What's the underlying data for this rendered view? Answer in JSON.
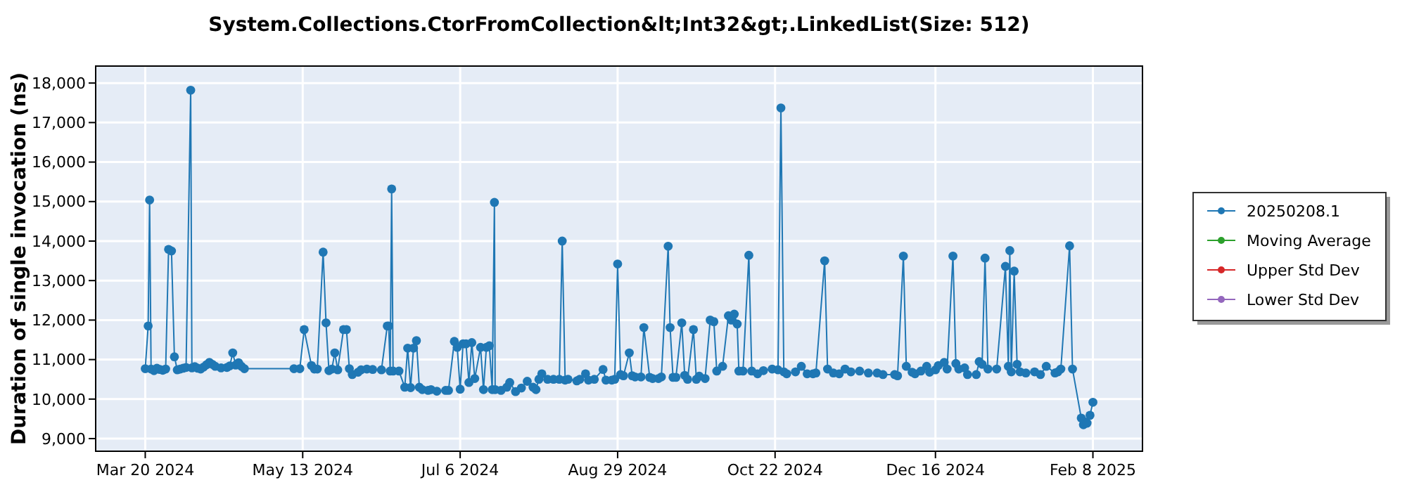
{
  "chart_data": {
    "type": "line",
    "title": "System.Collections.CtorFromCollection&lt;Int32&gt;.LinkedList(Size: 512)",
    "ylabel": "Duration of single invocation (ns)",
    "xlim": [
      "2024-03-03",
      "2025-02-25"
    ],
    "xticks": [
      {
        "value": "2024-03-20",
        "label": "Mar 20 2024"
      },
      {
        "value": "2024-05-13",
        "label": "May 13 2024"
      },
      {
        "value": "2024-07-06",
        "label": "Jul 6 2024"
      },
      {
        "value": "2024-08-29",
        "label": "Aug 29 2024"
      },
      {
        "value": "2024-10-22",
        "label": "Oct 22 2024"
      },
      {
        "value": "2024-12-16",
        "label": "Dec 16 2024"
      },
      {
        "value": "2025-02-08",
        "label": "Feb 8 2025"
      }
    ],
    "ylim": [
      8680,
      18430
    ],
    "yticks": [
      {
        "value": 9000,
        "label": "9,000"
      },
      {
        "value": 10000,
        "label": "10,000"
      },
      {
        "value": 11000,
        "label": "11,000"
      },
      {
        "value": 12000,
        "label": "12,000"
      },
      {
        "value": 13000,
        "label": "13,000"
      },
      {
        "value": 14000,
        "label": "14,000"
      },
      {
        "value": 15000,
        "label": "15,000"
      },
      {
        "value": 16000,
        "label": "16,000"
      },
      {
        "value": 17000,
        "label": "17,000"
      },
      {
        "value": 18000,
        "label": "18,000"
      }
    ],
    "grid": true,
    "legend": "right",
    "marker": "circle",
    "line_style": "solid",
    "series": [
      {
        "name": "20250208.1",
        "color": "#1f77b4",
        "x": [
          "2024-03-20",
          "2024-03-21",
          "2024-03-21T12:00",
          "2024-03-22",
          "2024-03-23",
          "2024-03-24",
          "2024-03-25",
          "2024-03-26",
          "2024-03-27",
          "2024-03-28",
          "2024-03-29",
          "2024-03-30",
          "2024-03-31",
          "2024-04-01",
          "2024-04-02",
          "2024-04-03",
          "2024-04-04T14:00",
          "2024-04-05",
          "2024-04-06",
          "2024-04-07",
          "2024-04-08",
          "2024-04-09",
          "2024-04-10",
          "2024-04-11",
          "2024-04-12",
          "2024-04-13",
          "2024-04-15",
          "2024-04-17",
          "2024-04-18",
          "2024-04-19",
          "2024-04-20",
          "2024-04-21",
          "2024-04-22",
          "2024-04-23",
          "2024-05-10",
          "2024-05-12",
          "2024-05-13T12:00",
          "2024-05-16",
          "2024-05-17",
          "2024-05-18",
          "2024-05-20",
          "2024-05-21",
          "2024-05-22",
          "2024-05-23",
          "2024-05-24",
          "2024-05-25",
          "2024-05-27",
          "2024-05-28",
          "2024-05-29",
          "2024-05-30",
          "2024-06-01",
          "2024-06-02",
          "2024-06-04",
          "2024-06-06",
          "2024-06-09",
          "2024-06-11",
          "2024-06-11T12:00",
          "2024-06-12",
          "2024-06-12T12:00",
          "2024-06-13",
          "2024-06-15",
          "2024-06-17",
          "2024-06-18",
          "2024-06-19",
          "2024-06-20",
          "2024-06-21",
          "2024-06-22",
          "2024-06-23",
          "2024-06-25",
          "2024-06-26",
          "2024-06-28",
          "2024-07-01",
          "2024-07-02",
          "2024-07-04",
          "2024-07-05",
          "2024-07-06",
          "2024-07-07",
          "2024-07-08",
          "2024-07-09",
          "2024-07-10",
          "2024-07-11",
          "2024-07-13",
          "2024-07-14",
          "2024-07-15",
          "2024-07-16",
          "2024-07-17",
          "2024-07-17T18:00",
          "2024-07-18",
          "2024-07-20",
          "2024-07-22",
          "2024-07-23",
          "2024-07-25",
          "2024-07-27",
          "2024-07-29",
          "2024-07-31",
          "2024-08-01",
          "2024-08-02",
          "2024-08-03",
          "2024-08-05",
          "2024-08-07",
          "2024-08-09",
          "2024-08-10",
          "2024-08-11",
          "2024-08-12",
          "2024-08-15",
          "2024-08-16",
          "2024-08-18",
          "2024-08-19",
          "2024-08-21",
          "2024-08-24",
          "2024-08-25",
          "2024-08-27",
          "2024-08-28",
          "2024-08-29",
          "2024-08-30",
          "2024-08-31",
          "2024-09-02",
          "2024-09-03",
          "2024-09-04",
          "2024-09-06",
          "2024-09-07",
          "2024-09-09",
          "2024-09-10",
          "2024-09-12",
          "2024-09-13",
          "2024-09-15T08:00",
          "2024-09-16",
          "2024-09-17",
          "2024-09-18",
          "2024-09-20",
          "2024-09-21",
          "2024-09-22",
          "2024-09-24",
          "2024-09-25",
          "2024-09-26",
          "2024-09-28",
          "2024-09-29T18:00",
          "2024-10-01",
          "2024-10-02",
          "2024-10-04",
          "2024-10-06",
          "2024-10-07",
          "2024-10-08",
          "2024-10-09",
          "2024-10-09T14:00",
          "2024-10-11",
          "2024-10-13",
          "2024-10-14",
          "2024-10-16",
          "2024-10-18",
          "2024-10-21",
          "2024-10-23",
          "2024-10-24",
          "2024-10-25",
          "2024-10-26",
          "2024-10-29",
          "2024-10-31",
          "2024-11-02",
          "2024-11-04",
          "2024-11-05",
          "2024-11-08",
          "2024-11-09",
          "2024-11-11",
          "2024-11-13",
          "2024-11-15",
          "2024-11-17",
          "2024-11-20",
          "2024-11-23",
          "2024-11-26",
          "2024-11-28",
          "2024-12-02",
          "2024-12-03",
          "2024-12-05",
          "2024-12-06",
          "2024-12-08",
          "2024-12-09",
          "2024-12-11",
          "2024-12-13",
          "2024-12-14",
          "2024-12-16",
          "2024-12-17",
          "2024-12-19",
          "2024-12-20",
          "2024-12-22",
          "2024-12-23",
          "2024-12-24",
          "2024-12-26",
          "2024-12-27",
          "2024-12-30",
          "2024-12-31",
          "2025-01-01",
          "2025-01-02",
          "2025-01-03",
          "2025-01-06",
          "2025-01-09",
          "2025-01-10",
          "2025-01-10T12:00",
          "2025-01-11",
          "2025-01-12",
          "2025-01-13",
          "2025-01-14",
          "2025-01-16",
          "2025-01-19",
          "2025-01-21",
          "2025-01-23",
          "2025-01-26",
          "2025-01-27",
          "2025-01-28",
          "2025-01-31",
          "2025-02-01",
          "2025-02-04",
          "2025-02-04T18:00",
          "2025-02-05",
          "2025-02-06",
          "2025-02-07",
          "2025-02-08"
        ],
        "values": [
          10770,
          11850,
          15040,
          10760,
          10720,
          10780,
          10750,
          10730,
          10760,
          13790,
          13750,
          11070,
          10740,
          10760,
          10780,
          10800,
          17820,
          10790,
          10820,
          10780,
          10760,
          10810,
          10870,
          10930,
          10880,
          10830,
          10790,
          10800,
          10840,
          11170,
          10860,
          10920,
          10830,
          10770,
          10770,
          10770,
          11760,
          10850,
          10760,
          10760,
          13720,
          11930,
          10720,
          10760,
          11170,
          10740,
          11760,
          11760,
          10770,
          10620,
          10680,
          10740,
          10760,
          10750,
          10740,
          11850,
          11850,
          10710,
          15320,
          10710,
          10710,
          10300,
          11290,
          10290,
          11290,
          11480,
          10300,
          10240,
          10220,
          10240,
          10200,
          10220,
          10220,
          11460,
          11310,
          10250,
          11400,
          11400,
          10420,
          11430,
          10520,
          11310,
          10240,
          11310,
          11350,
          10240,
          14980,
          10240,
          10220,
          10300,
          10420,
          10190,
          10280,
          10450,
          10300,
          10240,
          10500,
          10640,
          10500,
          10500,
          10500,
          14000,
          10480,
          10500,
          10460,
          10500,
          10640,
          10480,
          10500,
          10750,
          10480,
          10480,
          10500,
          13420,
          10620,
          10590,
          11170,
          10590,
          10560,
          10560,
          11810,
          10550,
          10520,
          10520,
          10560,
          13870,
          11810,
          10550,
          10550,
          11930,
          10600,
          10500,
          11760,
          10500,
          10580,
          10520,
          12000,
          11960,
          10710,
          10830,
          12110,
          12000,
          12150,
          11900,
          10710,
          10710,
          13640,
          10710,
          10640,
          10720,
          10760,
          10740,
          17370,
          10690,
          10640,
          10690,
          10830,
          10640,
          10640,
          10660,
          13500,
          10760,
          10660,
          10640,
          10760,
          10690,
          10710,
          10660,
          10660,
          10620,
          10620,
          10590,
          13620,
          10830,
          10680,
          10640,
          10710,
          10830,
          10680,
          10740,
          10850,
          10930,
          10760,
          13620,
          10900,
          10760,
          10790,
          10620,
          10620,
          10950,
          10880,
          13570,
          10760,
          10760,
          13360,
          10830,
          13760,
          10690,
          13240,
          10880,
          10690,
          10660,
          10690,
          10620,
          10830,
          10660,
          10690,
          10760,
          13880,
          10760,
          9520,
          9350,
          9430,
          9390,
          9590,
          9920
        ]
      },
      {
        "name": "Moving Average",
        "color": "#2ca02c"
      },
      {
        "name": "Upper Std Dev",
        "color": "#d62728"
      },
      {
        "name": "Lower Std Dev",
        "color": "#9467bd"
      }
    ]
  }
}
